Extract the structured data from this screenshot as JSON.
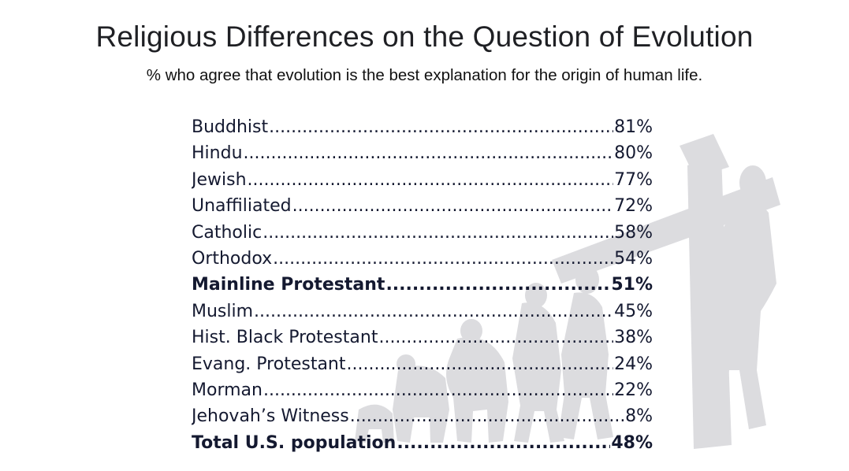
{
  "chart_data": {
    "type": "table",
    "title": "Religious Differences on the Question of Evolution",
    "subtitle": "% who agree that evolution is the best explanation for the origin of human life.",
    "rows": [
      {
        "label": "Buddhist",
        "value": "81%",
        "bold": false
      },
      {
        "label": "Hindu",
        "value": "80%",
        "bold": false
      },
      {
        "label": "Jewish",
        "value": "77%",
        "bold": false
      },
      {
        "label": "Unaffiliated",
        "value": "72%",
        "bold": false
      },
      {
        "label": "Catholic",
        "value": "58%",
        "bold": false
      },
      {
        "label": "Orthodox",
        "value": "54%",
        "bold": false
      },
      {
        "label": "Mainline Protestant",
        "value": "51%",
        "bold": true
      },
      {
        "label": "Muslim",
        "value": "45%",
        "bold": false
      },
      {
        "label": "Hist. Black Protestant",
        "value": "38%",
        "bold": false
      },
      {
        "label": "Evang. Protestant",
        "value": "24%",
        "bold": false
      },
      {
        "label": "Morman",
        "value": "22%",
        "bold": false
      },
      {
        "label": "Jehovah’s Witness",
        "value": "8%",
        "bold": false
      },
      {
        "label": "Total U.S. population",
        "value": "48%",
        "bold": true
      }
    ]
  },
  "colors": {
    "text": "#141930",
    "title": "#1f2024",
    "silhouette": "#d4d4d8"
  }
}
